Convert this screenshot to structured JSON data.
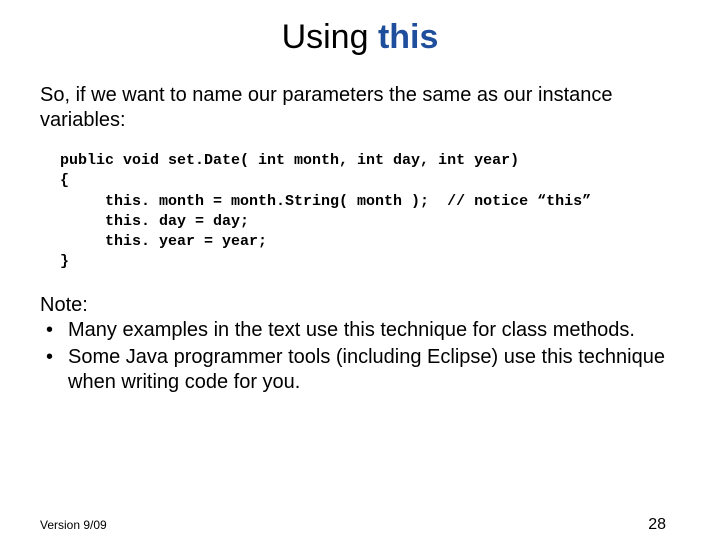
{
  "title": {
    "prefix": "Using ",
    "keyword": "this"
  },
  "intro": "So, if we want to name our parameters the same as our instance variables:",
  "code": {
    "l1": "public void set.Date( int month, int day, int year)",
    "l2": "{",
    "l3": "     this. month = month.String( month );  // notice “this”",
    "l4": "     this. day = day;",
    "l5": "     this. year = year;",
    "l6": "}"
  },
  "note_heading": "Note:",
  "bullets": [
    "Many examples in the text use this technique for class methods.",
    "Some Java programmer tools (including Eclipse) use this technique when writing code for you."
  ],
  "footer": {
    "version": "Version 9/09",
    "page": "28"
  },
  "colors": {
    "keyword": "#1f4e9c",
    "text": "#000000",
    "background": "#ffffff"
  },
  "fonts": {
    "body": "Arial",
    "code": "Courier New",
    "title_size_pt": 26,
    "body_size_pt": 15,
    "code_size_pt": 11,
    "footer_size_pt": 9
  }
}
